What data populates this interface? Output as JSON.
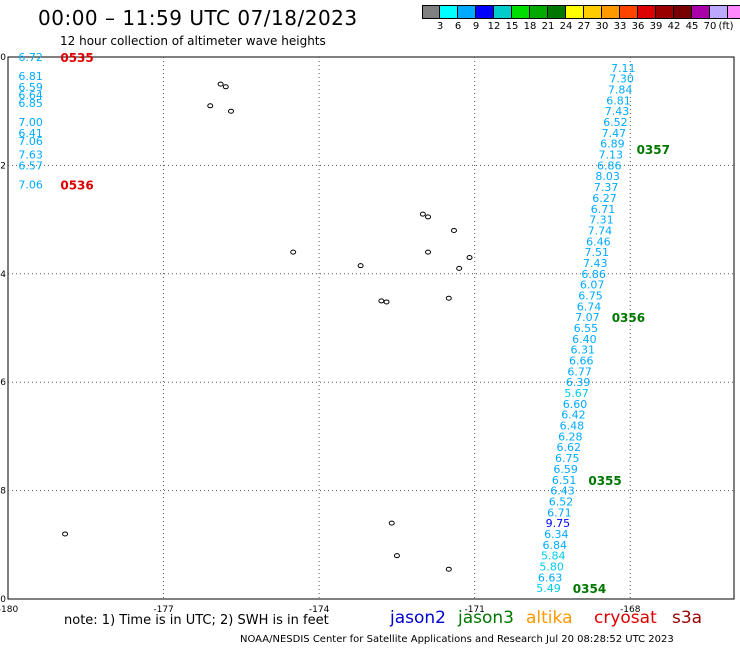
{
  "header": {
    "title": "00:00 – 11:59 UTC 07/18/2023",
    "subtitle": "12 hour collection of altimeter wave heights"
  },
  "legend": {
    "colors": [
      "#808080",
      "#00ffff",
      "#00aaff",
      "#0000ff",
      "#00cccc",
      "#00dd00",
      "#00aa00",
      "#007700",
      "#ffff00",
      "#ffcc00",
      "#ff9900",
      "#ff4400",
      "#dd0000",
      "#990000",
      "#770000",
      "#aa00aa",
      "#bbaaff",
      "#ff88ff",
      "#000000"
    ],
    "ticks": [
      "3",
      "6",
      "9",
      "12",
      "15",
      "18",
      "21",
      "24",
      "27",
      "30",
      "33",
      "36",
      "39",
      "42",
      "45",
      "70"
    ],
    "unit": "(ft)"
  },
  "chart_data": {
    "type": "scatter",
    "title": "00:00 – 11:59 UTC 07/18/2023",
    "subtitle": "12 hour collection of altimeter wave heights",
    "xlim": [
      -180,
      -166
    ],
    "ylim": [
      -10,
      0
    ],
    "x_ticks": [
      "-180",
      "-177",
      "-174",
      "-171",
      "-168",
      "-16"
    ],
    "y_ticks": [
      "0",
      "-2",
      "-4",
      "-6",
      "-8",
      "-10"
    ],
    "grid": true,
    "color_scale": {
      "2": "#00ffff",
      "4": "#00aaff",
      "6": "#00aaff",
      "8": "#00aaff",
      "10": "#0000ff"
    },
    "tracks": [
      {
        "name": "jason3",
        "x": [
          -167.9,
          -167.93,
          -167.96,
          -167.99,
          -168.02,
          -168.05,
          -168.08,
          -168.11,
          -168.14,
          -168.17,
          -168.2,
          -168.23,
          -168.26,
          -168.29,
          -168.32,
          -168.35,
          -168.38,
          -168.41,
          -168.44,
          -168.47,
          -168.5,
          -168.53,
          -168.56,
          -168.59,
          -168.62,
          -168.65,
          -168.68,
          -168.71,
          -168.74,
          -168.77,
          -168.8,
          -168.83,
          -168.86,
          -168.89,
          -168.92,
          -168.95,
          -168.98,
          -169.01,
          -169.04,
          -169.07,
          -169.1,
          -169.13,
          -169.16,
          -169.19,
          -169.22,
          -169.25,
          -169.28,
          -169.31,
          -169.34,
          -169.37,
          -169.4
        ],
        "y": [
          -0.2,
          -0.4,
          -0.6,
          -0.8,
          -1.0,
          -1.2,
          -1.4,
          -1.6,
          -1.8,
          -2.0,
          -2.2,
          -2.4,
          -2.6,
          -2.8,
          -3.0,
          -3.2,
          -3.4,
          -3.6,
          -3.8,
          -4.0,
          -4.2,
          -4.4,
          -4.6,
          -4.8,
          -5.0,
          -5.2,
          -5.4,
          -5.6,
          -5.8,
          -6.0,
          -6.2,
          -6.4,
          -6.6,
          -6.8,
          -7.0,
          -7.2,
          -7.4,
          -7.6,
          -7.8,
          -8.0,
          -8.2,
          -8.4,
          -8.6,
          -8.8,
          -9.0,
          -9.2,
          -9.4,
          -9.6,
          -9.8,
          -10.0,
          -10.2
        ],
        "values": [
          "7.11",
          "7.30",
          "7.84",
          "6.81",
          "7.43",
          "6.52",
          "7.47",
          "6.89",
          "7.13",
          "6.86",
          "8.03",
          "7.37",
          "6.27",
          "6.71",
          "7.31",
          "7.74",
          "6.46",
          "7.51",
          "7.43",
          "6.86",
          "6.07",
          "6.75",
          "6.74",
          "7.07",
          "6.55",
          "6.40",
          "6.31",
          "6.66",
          "6.77",
          "6.39",
          "5.67",
          "6.60",
          "6.42",
          "6.48",
          "6.28",
          "6.62",
          "6.75",
          "6.59",
          "6.51",
          "6.43",
          "6.52",
          "6.71",
          "9.75",
          "6.34",
          "6.84",
          "5.84",
          "5.80",
          "6.63",
          "5.49",
          "",
          ""
        ],
        "times": [
          {
            "label": "0357",
            "y": -1.7
          },
          {
            "label": "0356",
            "y": -4.8
          },
          {
            "label": "0355",
            "y": -7.8
          },
          {
            "label": "0354",
            "y": -9.8
          }
        ]
      },
      {
        "name": "cryosat",
        "x": [
          -179.8,
          -179.8,
          -179.8,
          -179.8,
          -179.8,
          -179.8,
          -179.8,
          -179.8,
          -179.8,
          -179.8,
          -179.8
        ],
        "y": [
          0,
          -0.35,
          -0.55,
          -0.7,
          -0.85,
          -1.2,
          -1.4,
          -1.55,
          -1.8,
          -2.0,
          -2.35
        ],
        "values": [
          "6.72",
          "6.81",
          "6.59",
          "6.64",
          "6.85",
          "7.00",
          "6.41",
          "7.06",
          "7.63",
          "6.57",
          "7.06"
        ],
        "times": [
          {
            "label": "0535",
            "y": 0
          },
          {
            "label": "0536",
            "y": -2.35
          }
        ]
      }
    ]
  },
  "footer": {
    "note": "note:  1) Time is in UTC;  2) SWH is in feet",
    "satellites": [
      {
        "name": "jason2",
        "color": "#0000cc"
      },
      {
        "name": "jason3",
        "color": "#007700"
      },
      {
        "name": "altika",
        "color": "#ff9900"
      },
      {
        "name": "cryosat",
        "color": "#dd0000"
      },
      {
        "name": "s3a",
        "color": "#990000"
      }
    ],
    "credit": "NOAA/NESDIS Center for Satellite Applications and Research    Jul 20 08:28:52 UTC 2023"
  }
}
